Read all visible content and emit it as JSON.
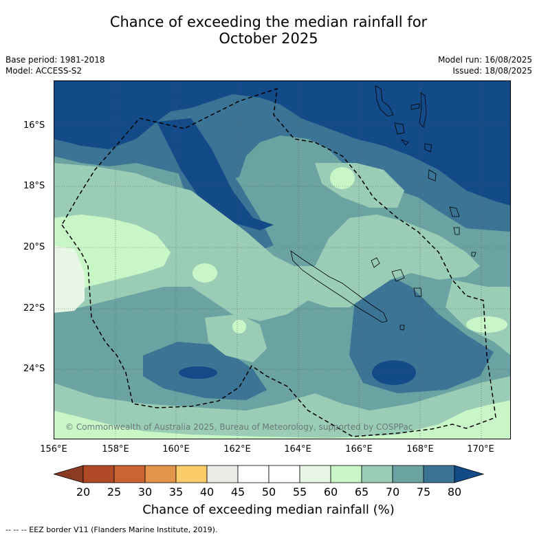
{
  "title": {
    "line1": "Chance of exceeding the median rainfall for",
    "line2": "October 2025"
  },
  "meta": {
    "base_period": "Base period: 1981-2018",
    "model": "Model: ACCESS-S2",
    "model_run": "Model run: 16/08/2025",
    "issued": "Issued: 18/08/2025"
  },
  "axes": {
    "lat_ticks": [
      "16°S",
      "18°S",
      "20°S",
      "22°S",
      "24°S"
    ],
    "lon_ticks": [
      "156°E",
      "158°E",
      "160°E",
      "162°E",
      "164°E",
      "166°E",
      "168°E",
      "170°E"
    ]
  },
  "colorbar": {
    "labels": [
      "20",
      "25",
      "30",
      "35",
      "40",
      "45",
      "50",
      "55",
      "60",
      "65",
      "70",
      "75",
      "80"
    ],
    "title": "Chance of exceeding median rainfall (%)",
    "colors": {
      "lt20": "#8b3a23",
      "20-25": "#b04a26",
      "25-30": "#cc6431",
      "30-35": "#e2944b",
      "35-40": "#fbcd6a",
      "40-45": "#ebebe6",
      "45-55": "#ffffff",
      "55-60": "#e8f6e6",
      "60-65": "#c9f6c7",
      "65-70": "#9bccb6",
      "70-75": "#6ba3a2",
      "75-80": "#3c7496",
      "gt80": "#124b88"
    }
  },
  "copyright": "© Commonwealth of Australia 2025, Bureau of Meteorology, supported by COSPPac",
  "footer": "-- -- -- EEZ border V11 (Flanders Marine Institute, 2019)."
}
